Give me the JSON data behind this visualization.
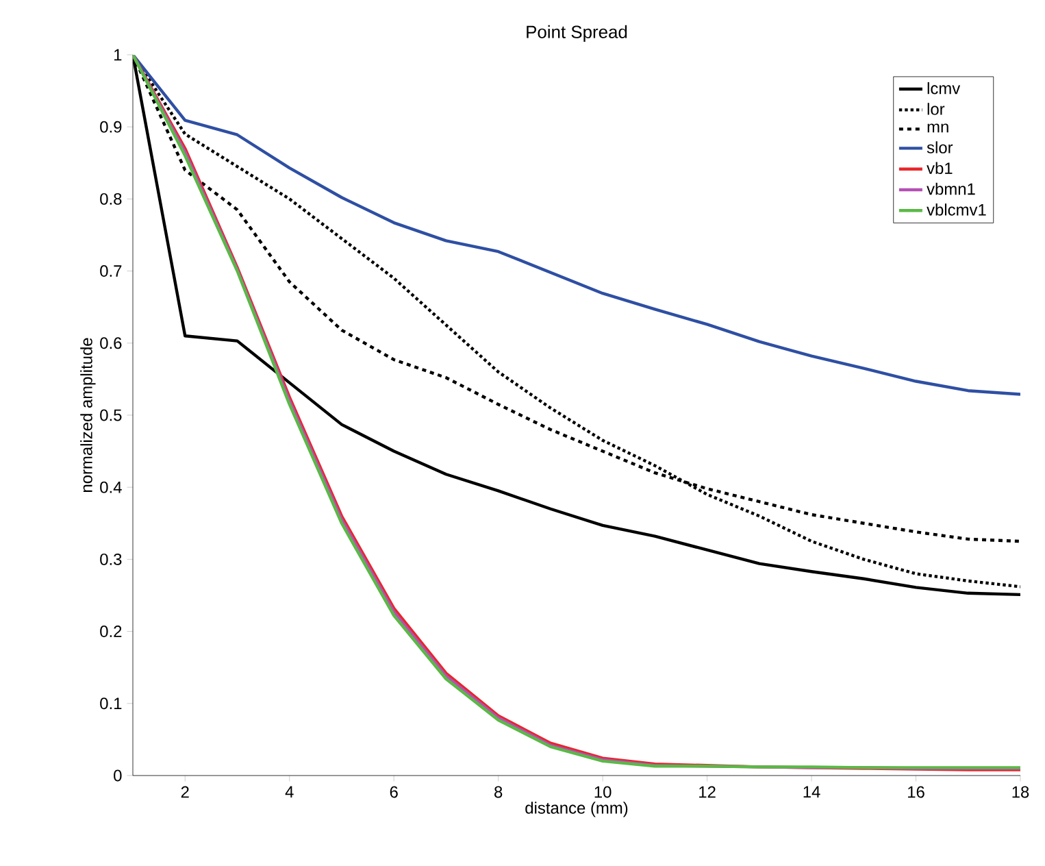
{
  "chart_data": {
    "type": "line",
    "title": "Point Spread",
    "xlabel": "distance (mm)",
    "ylabel": "normalized amplitude",
    "x": [
      1,
      2,
      3,
      4,
      5,
      6,
      7,
      8,
      9,
      10,
      11,
      12,
      13,
      14,
      15,
      16,
      17,
      18
    ],
    "xlim": [
      1,
      18
    ],
    "xticks": [
      2,
      4,
      6,
      8,
      10,
      12,
      14,
      16,
      18
    ],
    "ylim": [
      0,
      1
    ],
    "yticks": [
      0,
      0.1,
      0.2,
      0.3,
      0.4,
      0.5,
      0.6,
      0.7,
      0.8,
      0.9,
      1
    ],
    "legend": "top right",
    "series": [
      {
        "name": "lcmv",
        "color": "#000000",
        "line_style": "solid",
        "values": [
          1.0,
          0.61,
          0.603,
          0.545,
          0.487,
          0.45,
          0.418,
          0.395,
          0.37,
          0.347,
          0.332,
          0.313,
          0.294,
          0.283,
          0.273,
          0.261,
          0.253,
          0.251
        ]
      },
      {
        "name": "lor",
        "color": "#000000",
        "line_style": "dotted",
        "values": [
          1.0,
          0.89,
          0.845,
          0.8,
          0.745,
          0.69,
          0.625,
          0.56,
          0.51,
          0.465,
          0.43,
          0.39,
          0.36,
          0.325,
          0.3,
          0.28,
          0.27,
          0.262
        ]
      },
      {
        "name": "mn",
        "color": "#000000",
        "line_style": "dashed",
        "values": [
          1.0,
          0.84,
          0.785,
          0.685,
          0.618,
          0.577,
          0.552,
          0.515,
          0.48,
          0.45,
          0.42,
          0.398,
          0.38,
          0.362,
          0.35,
          0.338,
          0.328,
          0.325
        ]
      },
      {
        "name": "slor",
        "color": "#2e4fa3",
        "line_style": "solid",
        "values": [
          1.0,
          0.909,
          0.889,
          0.843,
          0.802,
          0.767,
          0.742,
          0.727,
          0.698,
          0.669,
          0.647,
          0.626,
          0.602,
          0.582,
          0.565,
          0.547,
          0.534,
          0.529
        ]
      },
      {
        "name": "vb1",
        "color": "#e8262a",
        "line_style": "solid",
        "values": [
          1.0,
          0.87,
          0.705,
          0.525,
          0.36,
          0.232,
          0.142,
          0.083,
          0.045,
          0.024,
          0.016,
          0.014,
          0.012,
          0.011,
          0.01,
          0.009,
          0.008,
          0.008
        ]
      },
      {
        "name": "vbmn1",
        "color": "#b44fb4",
        "line_style": "solid",
        "values": [
          1.0,
          0.865,
          0.702,
          0.52,
          0.355,
          0.227,
          0.138,
          0.08,
          0.042,
          0.022,
          0.014,
          0.013,
          0.012,
          0.011,
          0.011,
          0.01,
          0.01,
          0.01
        ]
      },
      {
        "name": "vblcmv1",
        "color": "#5ab946",
        "line_style": "solid",
        "values": [
          1.0,
          0.86,
          0.7,
          0.515,
          0.35,
          0.222,
          0.134,
          0.077,
          0.04,
          0.02,
          0.013,
          0.013,
          0.012,
          0.012,
          0.011,
          0.011,
          0.011,
          0.011
        ]
      }
    ]
  }
}
